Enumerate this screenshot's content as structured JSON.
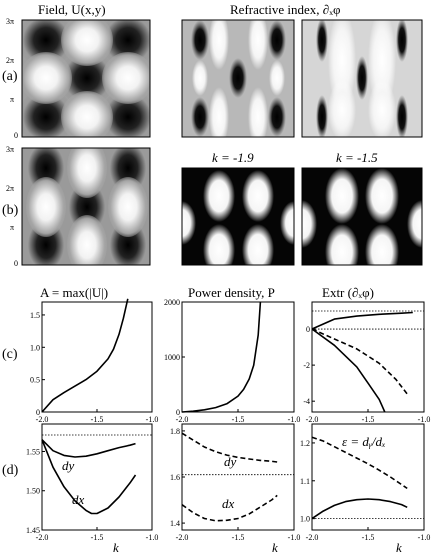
{
  "headers": {
    "field": "Field, U(x,y)",
    "refractive": "Refractive index, ∂ₓφ",
    "k_a": "k = -1.9",
    "k_b": "k = -1.5",
    "A": "A = max(|U|)",
    "power": "Power density, P",
    "extr": "Extr (∂ₓφ)",
    "eps": "ε = dᵧ/dₓ"
  },
  "row_labels": [
    "(a)",
    "(b)",
    "(c)",
    "(d)"
  ],
  "map_y_ticks": [
    "3π",
    "2π",
    "π",
    "0"
  ],
  "xaxis": {
    "label": "k",
    "ticks": [
      "-2.0",
      "-1.5",
      "-1.0"
    ]
  },
  "curve_labels": {
    "dy": "dy",
    "dx": "dx"
  },
  "chart_data": [
    {
      "type": "line",
      "panel": "c1",
      "title": "A = max(|U|)",
      "xlim": [
        -2.0,
        -1.0
      ],
      "ylim": [
        0,
        1.7
      ],
      "yticks": [
        "1.5",
        "1.0",
        "0.5",
        "0"
      ],
      "series": [
        {
          "style": "solid",
          "x": [
            -2.0,
            -1.9,
            -1.8,
            -1.7,
            -1.6,
            -1.5,
            -1.4,
            -1.35,
            -1.3,
            -1.26,
            -1.22
          ],
          "y": [
            0.0,
            0.19,
            0.3,
            0.4,
            0.5,
            0.63,
            0.82,
            0.97,
            1.2,
            1.45,
            1.75
          ]
        }
      ]
    },
    {
      "type": "line",
      "panel": "c2",
      "title": "Power density, P",
      "xlim": [
        -2.0,
        -1.0
      ],
      "ylim": [
        0,
        2000
      ],
      "yticks": [
        "2000",
        "1000",
        "0"
      ],
      "series": [
        {
          "style": "solid",
          "x": [
            -2.0,
            -1.9,
            -1.8,
            -1.7,
            -1.6,
            -1.5,
            -1.45,
            -1.4,
            -1.36,
            -1.32,
            -1.3
          ],
          "y": [
            0,
            15,
            40,
            80,
            150,
            290,
            410,
            600,
            850,
            1400,
            2000
          ]
        }
      ]
    },
    {
      "type": "line",
      "panel": "c3",
      "title": "Extr (∂ₓφ)",
      "xlim": [
        -2.0,
        -1.0
      ],
      "ylim": [
        -4.6,
        1.5
      ],
      "yticks": [
        "0",
        "-2",
        "-4"
      ],
      "hlines": [
        1,
        0
      ],
      "series": [
        {
          "style": "solid",
          "x": [
            -2.0,
            -1.8,
            -1.6,
            -1.4,
            -1.2,
            -1.1
          ],
          "y": [
            0.0,
            0.55,
            0.72,
            0.82,
            0.88,
            0.92
          ]
        },
        {
          "style": "solid",
          "x": [
            -2.0,
            -1.8,
            -1.6,
            -1.5,
            -1.4,
            -1.35
          ],
          "y": [
            0.0,
            -0.9,
            -2.1,
            -3.0,
            -3.9,
            -4.6
          ]
        },
        {
          "style": "dashed",
          "x": [
            -2.0,
            -1.8,
            -1.6,
            -1.4,
            -1.25,
            -1.15
          ],
          "y": [
            0.0,
            -0.55,
            -1.1,
            -1.9,
            -2.8,
            -3.6
          ]
        }
      ]
    },
    {
      "type": "line",
      "panel": "d1",
      "xlim": [
        -2.0,
        -1.0
      ],
      "ylim": [
        1.45,
        1.585
      ],
      "yticks": [
        "1.55",
        "1.50",
        "1.45"
      ],
      "hlines": [
        1.571
      ],
      "series": [
        {
          "name": "dy",
          "style": "solid",
          "x": [
            -2.0,
            -1.9,
            -1.8,
            -1.7,
            -1.6,
            -1.5,
            -1.4,
            -1.3,
            -1.2,
            -1.15
          ],
          "y": [
            1.565,
            1.551,
            1.545,
            1.543,
            1.544,
            1.547,
            1.551,
            1.555,
            1.558,
            1.56
          ]
        },
        {
          "name": "dx",
          "style": "solid",
          "x": [
            -2.0,
            -1.9,
            -1.8,
            -1.7,
            -1.6,
            -1.55,
            -1.5,
            -1.4,
            -1.3,
            -1.2,
            -1.15
          ],
          "y": [
            1.565,
            1.53,
            1.505,
            1.487,
            1.475,
            1.471,
            1.471,
            1.478,
            1.492,
            1.51,
            1.52
          ]
        }
      ]
    },
    {
      "type": "line",
      "panel": "d2",
      "xlim": [
        -2.0,
        -1.0
      ],
      "ylim": [
        1.37,
        1.83
      ],
      "yticks": [
        "1.8",
        "1.6",
        "1.4"
      ],
      "hlines": [
        1.61
      ],
      "series": [
        {
          "name": "dy",
          "style": "dashed",
          "x": [
            -2.0,
            -1.9,
            -1.8,
            -1.7,
            -1.6,
            -1.5,
            -1.4,
            -1.3,
            -1.2,
            -1.15
          ],
          "y": [
            1.79,
            1.76,
            1.73,
            1.71,
            1.695,
            1.685,
            1.678,
            1.672,
            1.668,
            1.665
          ]
        },
        {
          "name": "dx",
          "style": "dashed",
          "x": [
            -2.0,
            -1.9,
            -1.8,
            -1.7,
            -1.6,
            -1.5,
            -1.4,
            -1.3,
            -1.2,
            -1.15
          ],
          "y": [
            1.48,
            1.445,
            1.42,
            1.41,
            1.412,
            1.42,
            1.44,
            1.47,
            1.5,
            1.52
          ]
        }
      ]
    },
    {
      "type": "line",
      "panel": "d3",
      "title": "ε = dᵧ/dₓ",
      "xlim": [
        -2.0,
        -1.0
      ],
      "ylim": [
        0.97,
        1.25
      ],
      "yticks": [
        "1.2",
        "1.1",
        "1.0"
      ],
      "hlines": [
        1.0
      ],
      "series": [
        {
          "style": "dashed",
          "x": [
            -2.0,
            -1.9,
            -1.8,
            -1.7,
            -1.6,
            -1.5,
            -1.4,
            -1.3,
            -1.2,
            -1.15
          ],
          "y": [
            1.215,
            1.205,
            1.19,
            1.175,
            1.16,
            1.145,
            1.128,
            1.11,
            1.09,
            1.08
          ]
        },
        {
          "style": "solid",
          "x": [
            -2.0,
            -1.9,
            -1.8,
            -1.7,
            -1.6,
            -1.5,
            -1.4,
            -1.3,
            -1.2,
            -1.15
          ],
          "y": [
            1.0,
            1.02,
            1.035,
            1.045,
            1.05,
            1.052,
            1.05,
            1.045,
            1.037,
            1.03
          ]
        }
      ]
    }
  ]
}
